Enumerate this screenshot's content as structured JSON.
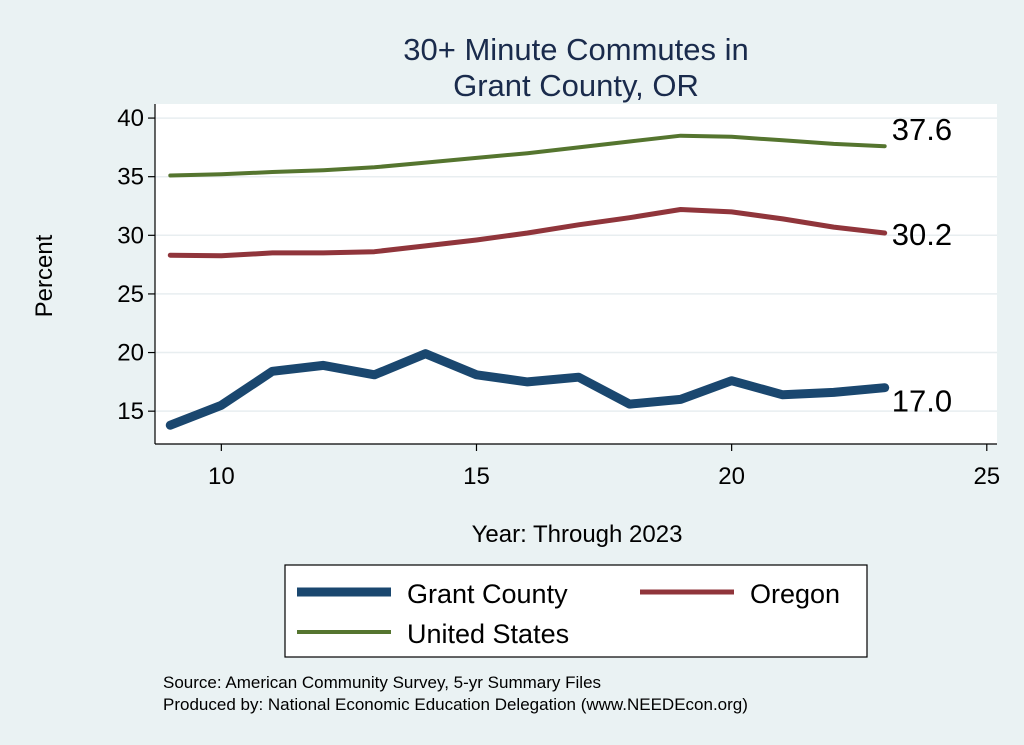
{
  "chart_data": {
    "type": "line",
    "title_lines": [
      "30+ Minute Commutes in",
      "Grant County, OR"
    ],
    "xlabel": "Year: Through 2023",
    "ylabel": "Percent",
    "xlim": [
      8.7,
      25.2
    ],
    "ylim": [
      12.2,
      41.2
    ],
    "xticks": [
      10,
      15,
      20,
      25
    ],
    "yticks": [
      15,
      20,
      25,
      30,
      35,
      40
    ],
    "grid": true,
    "legend_position": "bottom",
    "x": [
      9,
      10,
      11,
      12,
      13,
      14,
      15,
      16,
      17,
      18,
      19,
      20,
      21,
      22,
      23
    ],
    "series": [
      {
        "name": "Grant County",
        "color": "#1a476f",
        "width": 9,
        "values": [
          13.8,
          15.5,
          18.4,
          18.9,
          18.1,
          19.9,
          18.1,
          17.5,
          17.9,
          15.6,
          16.0,
          17.6,
          16.4,
          16.6,
          17.0
        ],
        "end_label": "17.0"
      },
      {
        "name": "Oregon",
        "color": "#90353b",
        "width": 5,
        "values": [
          28.3,
          28.25,
          28.5,
          28.5,
          28.6,
          29.1,
          29.6,
          30.2,
          30.9,
          31.5,
          32.2,
          32.0,
          31.4,
          30.7,
          30.2
        ],
        "end_label": "30.2"
      },
      {
        "name": "United States",
        "color": "#55752f",
        "width": 4,
        "values": [
          35.1,
          35.2,
          35.4,
          35.55,
          35.8,
          36.2,
          36.6,
          37.0,
          37.5,
          38.0,
          38.5,
          38.4,
          38.1,
          37.8,
          37.6
        ],
        "end_label": "37.6"
      }
    ],
    "source_lines": [
      "Source: American Community Survey, 5-yr Summary Files",
      "Produced by: National Economic Education Delegation (www.NEEDEcon.org)"
    ]
  }
}
